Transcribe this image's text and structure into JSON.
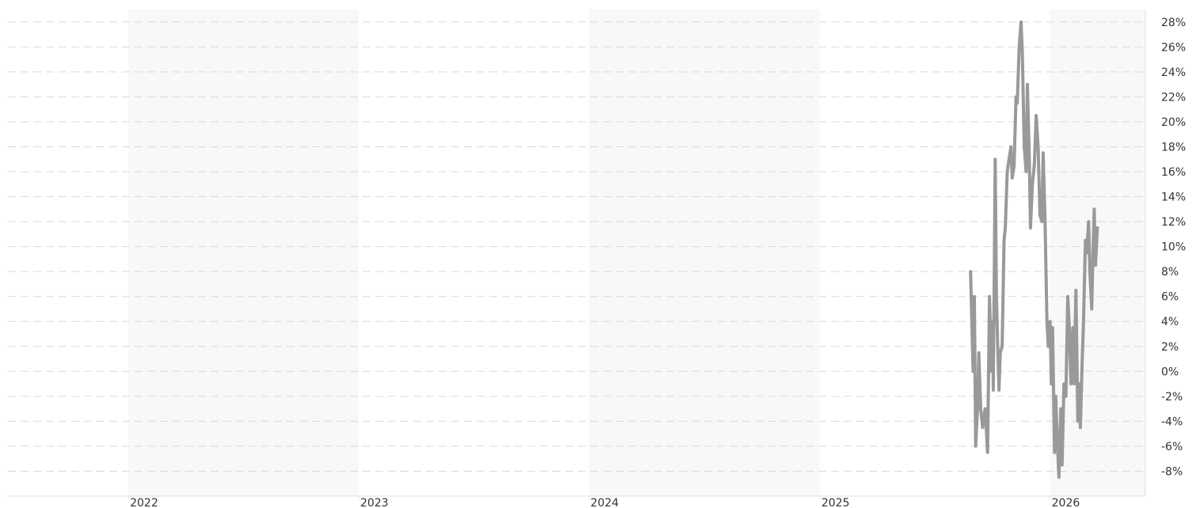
{
  "chart_data": {
    "type": "line",
    "title": "",
    "xlabel": "",
    "ylabel": "",
    "x_tick_labels": [
      "2022",
      "2023",
      "2024",
      "2025",
      "2026"
    ],
    "y_tick_labels": [
      "28%",
      "26%",
      "24%",
      "22%",
      "20%",
      "18%",
      "16%",
      "14%",
      "12%",
      "10%",
      "8%",
      "6%",
      "4%",
      "2%",
      "0%",
      "-2%",
      "-4%",
      "-6%",
      "-8%"
    ],
    "ylim": [
      -10,
      29
    ],
    "xlim": [
      "2021-06-24",
      "2026-06-01"
    ],
    "grid": true,
    "gridline_style": "dashed",
    "alternating_year_shading": true,
    "colors": {
      "line": "#999999",
      "grid": "#d9d9d9",
      "band": "#f8f8f8",
      "axis": "#e0e0e0",
      "text": "#333333"
    },
    "series": [
      {
        "points": [
          [
            "2025-08-28",
            8.0
          ],
          [
            "2025-09-01",
            0.0
          ],
          [
            "2025-09-03",
            6.0
          ],
          [
            "2025-09-05",
            -6.0
          ],
          [
            "2025-09-08",
            -3.0
          ],
          [
            "2025-09-10",
            1.5
          ],
          [
            "2025-09-13",
            -3.0
          ],
          [
            "2025-09-16",
            -4.5
          ],
          [
            "2025-09-20",
            -3.0
          ],
          [
            "2025-09-24",
            -6.5
          ],
          [
            "2025-09-27",
            6.0
          ],
          [
            "2025-09-30",
            0.0
          ],
          [
            "2025-10-02",
            4.0
          ],
          [
            "2025-10-03",
            -1.5
          ],
          [
            "2025-10-06",
            17.0
          ],
          [
            "2025-10-08",
            6.0
          ],
          [
            "2025-10-10",
            2.0
          ],
          [
            "2025-10-12",
            -1.5
          ],
          [
            "2025-10-14",
            1.5
          ],
          [
            "2025-10-17",
            2.0
          ],
          [
            "2025-10-20",
            10.5
          ],
          [
            "2025-10-22",
            11.5
          ],
          [
            "2025-10-25",
            16.0
          ],
          [
            "2025-10-28",
            17.0
          ],
          [
            "2025-10-31",
            18.0
          ],
          [
            "2025-11-02",
            15.5
          ],
          [
            "2025-11-05",
            16.5
          ],
          [
            "2025-11-08",
            22.0
          ],
          [
            "2025-11-10",
            21.5
          ],
          [
            "2025-11-13",
            26.0
          ],
          [
            "2025-11-16",
            28.0
          ],
          [
            "2025-11-18",
            25.5
          ],
          [
            "2025-11-21",
            18.0
          ],
          [
            "2025-11-24",
            16.0
          ],
          [
            "2025-11-26",
            23.0
          ],
          [
            "2025-11-29",
            17.0
          ],
          [
            "2025-12-01",
            11.5
          ],
          [
            "2025-12-04",
            15.0
          ],
          [
            "2025-12-07",
            16.5
          ],
          [
            "2025-12-10",
            20.5
          ],
          [
            "2025-12-13",
            18.0
          ],
          [
            "2025-12-16",
            12.5
          ],
          [
            "2025-12-19",
            12.0
          ],
          [
            "2025-12-21",
            17.5
          ],
          [
            "2025-12-24",
            12.0
          ],
          [
            "2025-12-27",
            4.0
          ],
          [
            "2025-12-29",
            2.0
          ],
          [
            "2026-01-01",
            4.0
          ],
          [
            "2026-01-03",
            -1.0
          ],
          [
            "2026-01-05",
            3.5
          ],
          [
            "2026-01-08",
            -6.5
          ],
          [
            "2026-01-10",
            -2.0
          ],
          [
            "2026-01-12",
            -5.0
          ],
          [
            "2026-01-15",
            -8.5
          ],
          [
            "2026-01-18",
            -3.0
          ],
          [
            "2026-01-20",
            -7.5
          ],
          [
            "2026-01-23",
            -1.0
          ],
          [
            "2026-01-26",
            -2.0
          ],
          [
            "2026-01-29",
            6.0
          ],
          [
            "2026-01-31",
            4.0
          ],
          [
            "2026-02-03",
            -1.0
          ],
          [
            "2026-02-06",
            3.5
          ],
          [
            "2026-02-08",
            -1.0
          ],
          [
            "2026-02-11",
            6.5
          ],
          [
            "2026-02-14",
            -4.0
          ],
          [
            "2026-02-16",
            -1.0
          ],
          [
            "2026-02-18",
            -4.5
          ],
          [
            "2026-02-21",
            1.0
          ],
          [
            "2026-02-23",
            4.0
          ],
          [
            "2026-02-26",
            10.5
          ],
          [
            "2026-02-28",
            9.5
          ],
          [
            "2026-03-03",
            12.0
          ],
          [
            "2026-03-05",
            8.0
          ],
          [
            "2026-03-08",
            5.0
          ],
          [
            "2026-03-10",
            9.5
          ],
          [
            "2026-03-12",
            13.0
          ],
          [
            "2026-03-14",
            8.5
          ],
          [
            "2026-03-17",
            11.5
          ]
        ]
      }
    ]
  }
}
